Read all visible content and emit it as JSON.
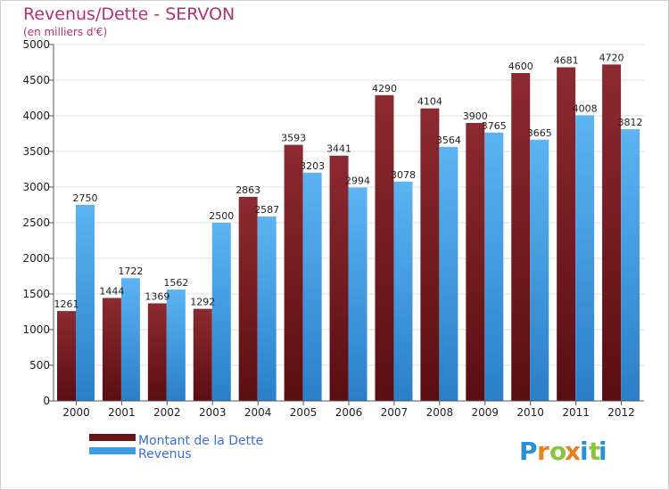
{
  "chart_data": {
    "type": "bar",
    "title": "Revenus/Dette - SERVON",
    "subtitle": "(en milliers d'€)",
    "xlabel": "",
    "ylabel": "",
    "ylim": [
      0,
      5000
    ],
    "yticks": [
      0,
      500,
      1000,
      1500,
      2000,
      2500,
      3000,
      3500,
      4000,
      4500,
      5000
    ],
    "grid": true,
    "legend_position": "bottom-left",
    "categories": [
      "2000",
      "2001",
      "2002",
      "2003",
      "2004",
      "2005",
      "2006",
      "2007",
      "2008",
      "2009",
      "2010",
      "2011",
      "2012"
    ],
    "series": [
      {
        "name": "Montant de la Dette",
        "color": "#7a1e22",
        "values": [
          1261,
          1444,
          1369,
          1292,
          2863,
          3593,
          3441,
          4290,
          4104,
          3900,
          4600,
          4681,
          4720
        ],
        "labels": [
          "1261",
          "1444",
          "1369",
          "1292",
          "2863",
          "3593",
          "3441",
          "4290",
          "4104",
          "3900",
          "4600",
          "4681",
          "4720"
        ]
      },
      {
        "name": "Revenus",
        "color": "#3e9be6",
        "values": [
          2750,
          1722,
          1562,
          2500,
          2587,
          3203,
          2994,
          3078,
          3564,
          3765,
          3665,
          4008,
          3812
        ],
        "labels": [
          "2750",
          "1722",
          "1562",
          "2500",
          "2587",
          "3203",
          "2994",
          "3078",
          "3564",
          "3765",
          "3665",
          "4008",
          "3812"
        ]
      }
    ]
  },
  "logo": {
    "letters": [
      "P",
      "r",
      "o",
      "x",
      "i",
      "t",
      "i"
    ],
    "colors": [
      "#2a8fd6",
      "#e8821e",
      "#8bc53f",
      "#e8821e",
      "#2a8fd6",
      "#8bc53f",
      "#2a8fd6"
    ]
  }
}
